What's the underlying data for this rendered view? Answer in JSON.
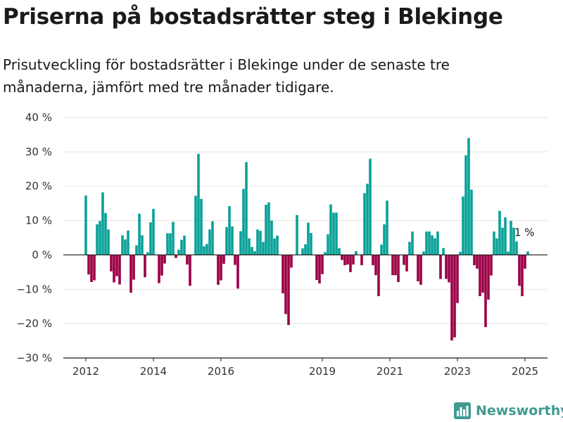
{
  "header": {
    "title": "Priserna på bostadsrätter steg i Blekinge",
    "subtitle": "Prisutveckling för bostadsrätter i Blekinge under de senaste tre månaderna, jämfört med tre månader tidigare."
  },
  "brand": {
    "name": "Newsworthy"
  },
  "colors": {
    "positive": "#0aa198",
    "negative": "#9b0046",
    "grid": "#e3e3e3",
    "axis": "#1a1a1a"
  },
  "chart_data": {
    "type": "bar",
    "ylim": [
      -30,
      40
    ],
    "yticks": [
      40,
      30,
      20,
      10,
      0,
      -10,
      -20,
      -30
    ],
    "ytick_labels": [
      "40 %",
      "30 %",
      "20 %",
      "10 %",
      "0 %",
      "−10 %",
      "−20 %",
      "−30 %"
    ],
    "xticks": [
      {
        "label": "2012",
        "index": 0
      },
      {
        "label": "2014",
        "index": 24
      },
      {
        "label": "2016",
        "index": 48
      },
      {
        "label": "2019",
        "index": 84
      },
      {
        "label": "2021",
        "index": 108
      },
      {
        "label": "2023",
        "index": 132
      },
      {
        "label": "2025",
        "index": 156
      }
    ],
    "annotation": {
      "label": "1 %",
      "index": 156,
      "value": 1
    },
    "series": [
      {
        "values": [
          17.3,
          -5.7,
          -7.9,
          -7.4,
          8.9,
          9.9,
          18.2,
          12.2,
          7.4,
          -4.8,
          -8.0,
          -6.2,
          -8.6,
          5.7,
          4.5,
          7.1,
          -11.0,
          -7.2,
          2.8,
          12.0,
          5.7,
          -6.5,
          0.8,
          9.5,
          13.4,
          0.0,
          -8.2,
          -6.0,
          -2.5,
          6.3,
          6.3,
          9.6,
          -0.9,
          1.5,
          4.4,
          5.6,
          -2.8,
          -9.0,
          0.0,
          17.2,
          29.4,
          16.3,
          2.5,
          3.2,
          7.4,
          9.8,
          0.0,
          -8.7,
          -7.4,
          -2.6,
          8.1,
          14.2,
          8.3,
          -2.9,
          -9.8,
          6.9,
          19.2,
          27.0,
          4.8,
          2.3,
          1.1,
          7.4,
          7.0,
          3.8,
          14.6,
          15.3,
          10.0,
          4.8,
          5.6,
          0.0,
          -11.2,
          -17.2,
          -20.4,
          -3.7,
          0.0,
          11.6,
          0.0,
          1.9,
          3.1,
          9.4,
          6.4,
          0.0,
          -7.3,
          -8.3,
          -5.6,
          0.8,
          6.0,
          14.7,
          12.3,
          12.3,
          2.0,
          -1.5,
          -3.0,
          -2.8,
          -5.0,
          -2.8,
          1.1,
          0.0,
          -3.0,
          18.0,
          20.7,
          28.0,
          -3.0,
          -5.9,
          -12.0,
          3.0,
          8.9,
          15.8,
          0.0,
          -5.9,
          -5.9,
          -7.9,
          0.0,
          -2.9,
          -4.8,
          3.8,
          6.8,
          0.0,
          -7.7,
          -8.7,
          1.0,
          6.8,
          6.8,
          5.7,
          4.8,
          6.8,
          -7.0,
          2.0,
          -7.0,
          -8.0,
          -24.9,
          -24.0,
          -14.0,
          0.9,
          17.0,
          29.0,
          34.0,
          19.0,
          -3.0,
          -4.0,
          -12.0,
          -11.0,
          -21.0,
          -13.0,
          -6.0,
          6.8,
          4.8,
          12.8,
          7.9,
          10.9,
          1.0,
          9.9,
          7.9,
          3.9,
          -9.0,
          -12.0,
          -4.0,
          1.0
        ]
      }
    ]
  }
}
